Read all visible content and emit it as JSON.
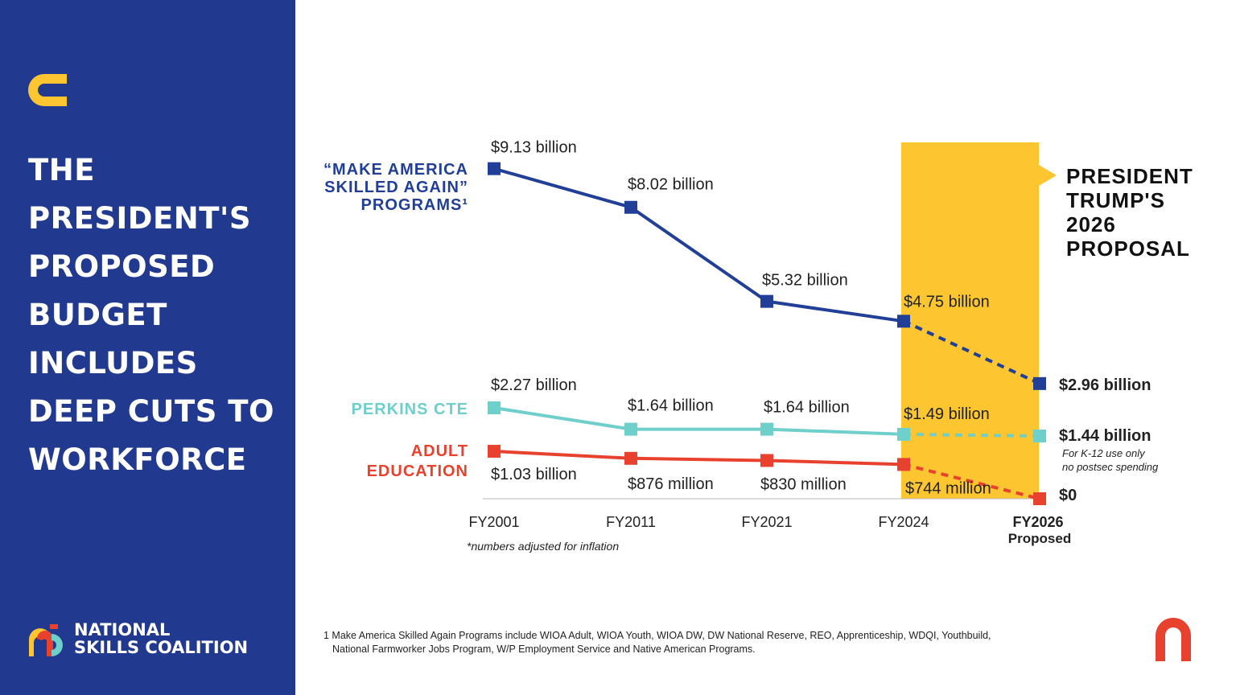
{
  "sidebar": {
    "headline_lines": [
      "THE",
      "PRESIDENT'S",
      "PROPOSED",
      "BUDGET",
      "INCLUDES",
      "DEEP CUTS TO",
      "WORKFORCE"
    ],
    "org_name_lines": [
      "NATIONAL",
      "SKILLS COALITION"
    ],
    "background_color": "#213a8f"
  },
  "chart_data": {
    "type": "line",
    "categories": [
      "FY2001",
      "FY2011",
      "FY2021",
      "FY2024",
      "FY2026"
    ],
    "category_sublabels": [
      "",
      "",
      "",
      "",
      "Proposed"
    ],
    "series": [
      {
        "name": "“MAKE AMERICA SKILLED AGAIN” PROGRAMS¹",
        "name_lines": [
          "“MAKE AMERICA",
          "SKILLED AGAIN”",
          "PROGRAMS¹"
        ],
        "color": "#223f97",
        "values": [
          9.13,
          8.02,
          5.32,
          4.75,
          2.96
        ],
        "labels": [
          "$9.13 billion",
          "$8.02 billion",
          "$5.32 billion",
          "$4.75 billion",
          "$2.96 billion"
        ]
      },
      {
        "name": "PERKINS CTE",
        "name_lines": [
          "PERKINS CTE"
        ],
        "color": "#6ecfcb",
        "values": [
          2.27,
          1.64,
          1.64,
          1.49,
          1.44
        ],
        "labels": [
          "$2.27 billion",
          "$1.64 billion",
          "$1.64 billion",
          "$1.49 billion",
          "$1.44 billion"
        ]
      },
      {
        "name": "ADULT EDUCATION",
        "name_lines": [
          "ADULT",
          "EDUCATION"
        ],
        "color": "#e8422f",
        "values": [
          1.03,
          0.876,
          0.83,
          0.744,
          0
        ],
        "labels": [
          "$1.03 billion",
          "$876 million",
          "$830 million",
          "$744 million",
          "$0"
        ]
      }
    ],
    "unit": "billion USD",
    "projected_from": "FY2024",
    "highlight": {
      "label_lines": [
        "PRESIDENT",
        "TRUMP'S",
        "2026",
        "PROPOSAL"
      ],
      "color": "#fdc52f"
    },
    "annotations": {
      "perkins_note_lines": [
        "For K-12 use only",
        "no postsec spending"
      ],
      "inflation_note": "*numbers adjusted for inflation"
    }
  },
  "footnote_lines": [
    "1 Make America Skilled Again Programs include WIOA Adult, WIOA Youth, WIOA DW, DW National Reserve, REO, Apprenticeship, WDQI, Youthbuild,",
    "National Farmworker Jobs Program, W/P Employment Service and Native American Programs."
  ]
}
